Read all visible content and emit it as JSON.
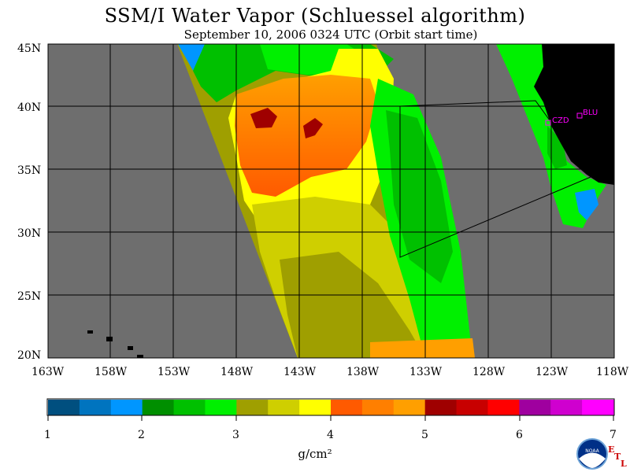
{
  "title": "SSM/I Water Vapor (Schluessel algorithm)",
  "subtitle": "September 10, 2006   0324 UTC   (Orbit start time)",
  "lat_labels": [
    "45N",
    "40N",
    "35N",
    "30N",
    "25N",
    "20N"
  ],
  "lon_labels": [
    "163W",
    "158W",
    "153W",
    "148W",
    "143W",
    "138W",
    "133W",
    "128W",
    "123W",
    "118W"
  ],
  "colorbar": {
    "colors": [
      "#004f7f",
      "#0074bf",
      "#0096ff",
      "#008f00",
      "#00c000",
      "#00f000",
      "#9f9f00",
      "#cfcf00",
      "#ffff00",
      "#ff5a00",
      "#ff7f00",
      "#ff9f00",
      "#9f0000",
      "#c80000",
      "#ff0000",
      "#9f009f",
      "#cf00cf",
      "#ff00ff"
    ],
    "tick_labels": [
      "1",
      "2",
      "3",
      "4",
      "5",
      "6",
      "7"
    ],
    "units": "g/cm²"
  },
  "sites": [
    {
      "label": "CZD"
    },
    {
      "label": "BLU"
    }
  ],
  "logo": {
    "text": "NOAA",
    "letters": [
      "E",
      "T",
      "L"
    ]
  },
  "colors": {
    "no_data": "#6e6e6e",
    "land": "#000000",
    "site": "#ff00ff"
  }
}
